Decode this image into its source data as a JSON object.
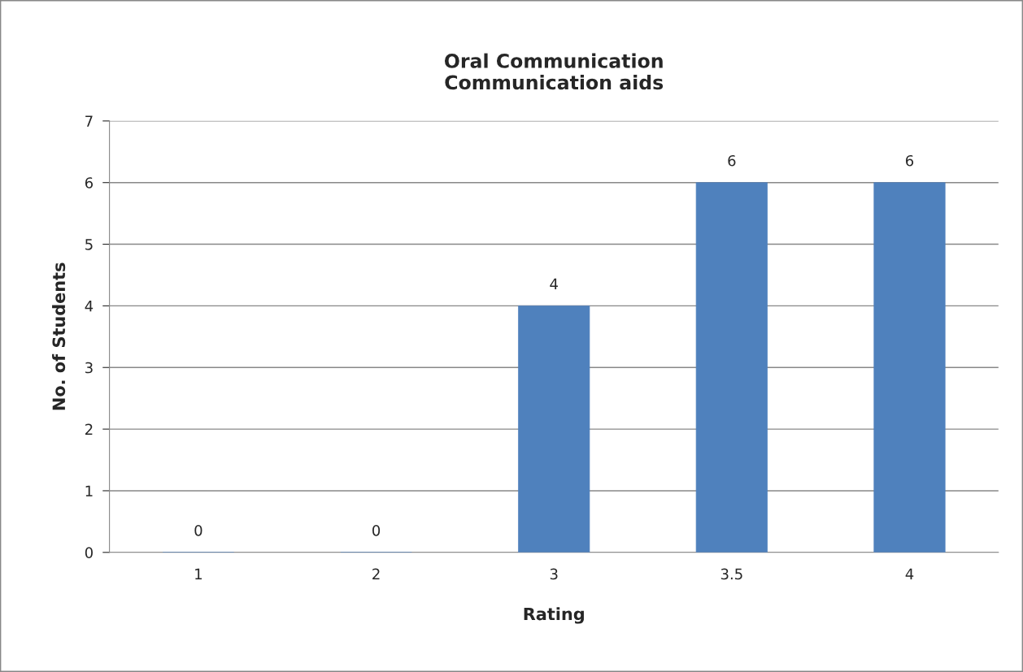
{
  "chart_data": {
    "type": "bar",
    "title": "Oral Communication\nCommunication aids",
    "xlabel": "Rating",
    "ylabel": "No. of Students",
    "categories": [
      "1",
      "2",
      "3",
      "3.5",
      "4"
    ],
    "values": [
      0,
      0,
      4,
      6,
      6
    ],
    "color": "#4f81bd",
    "ylim": [
      0,
      7
    ],
    "yticks": [
      0,
      1,
      2,
      3,
      4,
      5,
      6,
      7
    ],
    "grid": "y",
    "data_labels": true
  }
}
